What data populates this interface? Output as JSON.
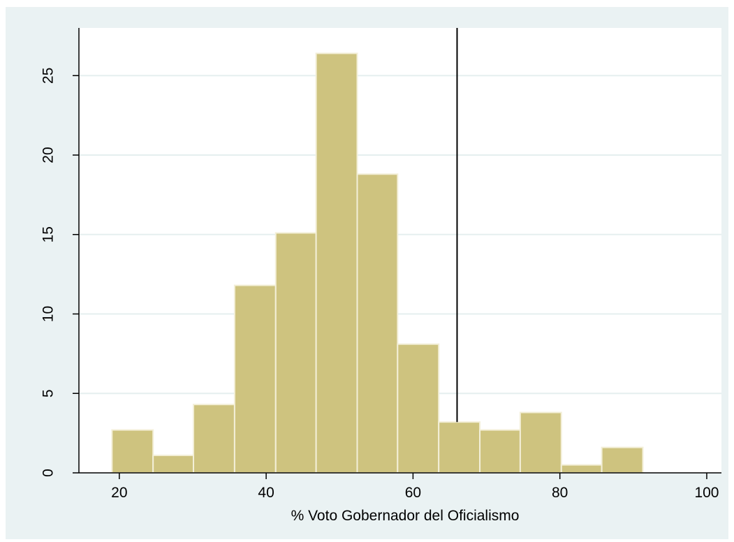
{
  "colors": {
    "background": "#eaf2f3",
    "bar_fill": "#cec37f",
    "bar_stroke": "#f3efd8",
    "grid": "#e5efef",
    "refline": "#000000"
  },
  "chart_data": {
    "type": "bar",
    "xlabel": "% Voto Gobernador del Oficialismo",
    "ylabel": "",
    "xlim": [
      14.5,
      102
    ],
    "ylim": [
      0,
      28
    ],
    "grid": true,
    "x_ticks": [
      20,
      40,
      60,
      80,
      100
    ],
    "y_ticks": [
      0,
      5,
      10,
      15,
      20,
      25
    ],
    "reference_line_x": 66,
    "bins": [
      {
        "start": 19,
        "end": 24.6,
        "value": 2.7
      },
      {
        "start": 24.6,
        "end": 30.1,
        "value": 1.1
      },
      {
        "start": 30.1,
        "end": 35.7,
        "value": 4.3
      },
      {
        "start": 35.7,
        "end": 41.3,
        "value": 11.8
      },
      {
        "start": 41.3,
        "end": 46.8,
        "value": 15.1
      },
      {
        "start": 46.8,
        "end": 52.4,
        "value": 26.4
      },
      {
        "start": 52.4,
        "end": 57.9,
        "value": 18.8
      },
      {
        "start": 57.9,
        "end": 63.5,
        "value": 8.1
      },
      {
        "start": 63.5,
        "end": 69.1,
        "value": 3.2
      },
      {
        "start": 69.1,
        "end": 74.6,
        "value": 2.7
      },
      {
        "start": 74.6,
        "end": 80.2,
        "value": 3.8
      },
      {
        "start": 80.2,
        "end": 85.7,
        "value": 0.5
      },
      {
        "start": 85.7,
        "end": 91.3,
        "value": 1.6
      }
    ]
  }
}
